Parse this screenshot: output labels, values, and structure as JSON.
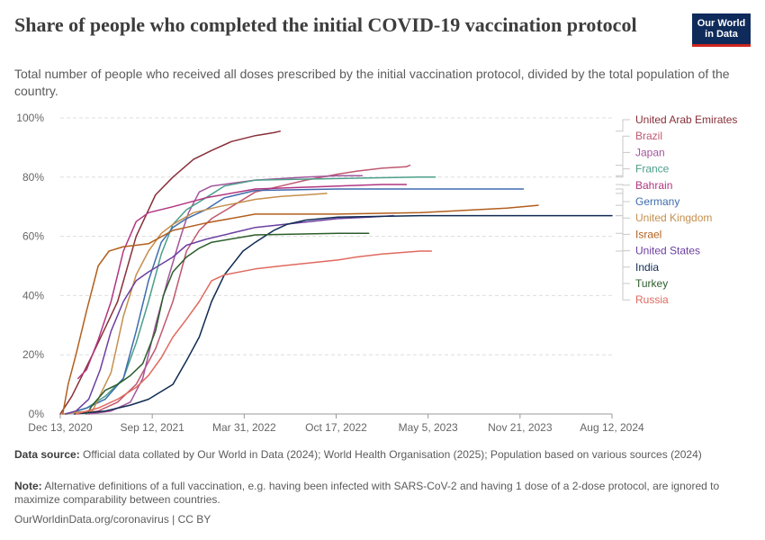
{
  "header": {
    "title": "Share of people who completed the initial COVID-19 vaccination protocol",
    "subtitle": "Total number of people who received all doses prescribed by the initial vaccination protocol, divided by the total population of the country.",
    "logo_line1": "Our World",
    "logo_line2": "in Data"
  },
  "footer": {
    "source_label": "Data source:",
    "source_text": "Official data collated by Our World in Data (2024); World Health Organisation (2025); Population based on various sources (2024)",
    "note_label": "Note:",
    "note_text": "Alternative definitions of a full vaccination, e.g. having been infected with SARS-CoV-2 and having 1 dose of a 2-dose protocol, are ignored to maximize comparability between countries.",
    "url": "OurWorldinData.org/coronavirus | CC BY"
  },
  "chart_data": {
    "type": "line",
    "x_ticks": [
      "Dec 13, 2020",
      "Sep 12, 2021",
      "Mar 31, 2022",
      "Oct 17, 2022",
      "May 5, 2023",
      "Nov 21, 2023",
      "Aug 12, 2024"
    ],
    "y_ticks": [
      "0%",
      "20%",
      "40%",
      "60%",
      "80%",
      "100%"
    ],
    "x_range": [
      "2020-12-13",
      "2024-08-12"
    ],
    "ylim": [
      0,
      100
    ],
    "grid": "horizontal dashed",
    "legend_placement": "right",
    "series": [
      {
        "name": "United Arab Emirates",
        "color": "#883039",
        "points": [
          [
            "2020-12-13",
            0
          ],
          [
            "2021-01-10",
            6
          ],
          [
            "2021-03-01",
            20
          ],
          [
            "2021-05-01",
            38
          ],
          [
            "2021-06-15",
            60
          ],
          [
            "2021-08-01",
            74
          ],
          [
            "2021-09-12",
            80
          ],
          [
            "2021-11-01",
            86
          ],
          [
            "2021-12-15",
            89
          ],
          [
            "2022-02-01",
            92
          ],
          [
            "2022-03-31",
            94
          ],
          [
            "2022-05-15",
            95
          ],
          [
            "2022-05-30",
            95.5
          ]
        ]
      },
      {
        "name": "Brazil",
        "color": "#c05870",
        "points": [
          [
            "2021-01-20",
            0
          ],
          [
            "2021-03-15",
            1
          ],
          [
            "2021-05-01",
            4
          ],
          [
            "2021-06-15",
            10
          ],
          [
            "2021-08-01",
            22
          ],
          [
            "2021-09-12",
            38
          ],
          [
            "2021-10-15",
            55
          ],
          [
            "2021-11-15",
            62
          ],
          [
            "2021-12-15",
            66
          ],
          [
            "2022-02-01",
            70
          ],
          [
            "2022-03-31",
            75
          ],
          [
            "2022-06-01",
            77
          ],
          [
            "2022-08-01",
            79
          ],
          [
            "2022-10-17",
            81
          ],
          [
            "2022-12-01",
            82
          ],
          [
            "2023-02-01",
            83
          ],
          [
            "2023-04-01",
            83.5
          ],
          [
            "2023-04-10",
            84
          ]
        ]
      },
      {
        "name": "Japan",
        "color": "#a2559c",
        "points": [
          [
            "2021-02-20",
            0
          ],
          [
            "2021-04-15",
            1
          ],
          [
            "2021-06-01",
            4
          ],
          [
            "2021-07-01",
            12
          ],
          [
            "2021-08-01",
            30
          ],
          [
            "2021-09-01",
            46
          ],
          [
            "2021-10-01",
            60
          ],
          [
            "2021-10-20",
            68
          ],
          [
            "2021-11-15",
            75
          ],
          [
            "2021-12-15",
            77
          ],
          [
            "2022-03-31",
            79
          ],
          [
            "2022-08-01",
            80
          ],
          [
            "2022-10-17",
            80.5
          ],
          [
            "2022-12-15",
            80.5
          ]
        ]
      },
      {
        "name": "France",
        "color": "#4c9f8a",
        "points": [
          [
            "2020-12-30",
            0
          ],
          [
            "2021-02-15",
            2
          ],
          [
            "2021-04-01",
            6
          ],
          [
            "2021-05-15",
            12
          ],
          [
            "2021-06-15",
            24
          ],
          [
            "2021-07-15",
            38
          ],
          [
            "2021-08-15",
            54
          ],
          [
            "2021-09-12",
            64
          ],
          [
            "2021-10-15",
            69
          ],
          [
            "2021-12-01",
            73
          ],
          [
            "2022-01-15",
            77
          ],
          [
            "2022-03-31",
            79
          ],
          [
            "2022-10-17",
            79.5
          ],
          [
            "2023-05-01",
            80
          ],
          [
            "2023-06-10",
            80
          ]
        ]
      },
      {
        "name": "Bahrain",
        "color": "#b13581",
        "points": [
          [
            "2021-01-25",
            12
          ],
          [
            "2021-02-15",
            15
          ],
          [
            "2021-03-15",
            25
          ],
          [
            "2021-04-15",
            38
          ],
          [
            "2021-05-15",
            55
          ],
          [
            "2021-06-15",
            65
          ],
          [
            "2021-07-15",
            68
          ],
          [
            "2021-09-12",
            70
          ],
          [
            "2021-12-01",
            73
          ],
          [
            "2022-03-31",
            76
          ],
          [
            "2022-10-17",
            77
          ],
          [
            "2023-02-01",
            77.5
          ],
          [
            "2023-04-01",
            77.5
          ]
        ]
      },
      {
        "name": "Germany",
        "color": "#3e6cad",
        "points": [
          [
            "2020-12-27",
            0
          ],
          [
            "2021-02-15",
            2
          ],
          [
            "2021-04-01",
            5
          ],
          [
            "2021-05-15",
            12
          ],
          [
            "2021-06-15",
            28
          ],
          [
            "2021-07-15",
            45
          ],
          [
            "2021-08-15",
            58
          ],
          [
            "2021-09-12",
            63
          ],
          [
            "2021-10-15",
            66
          ],
          [
            "2021-12-01",
            69
          ],
          [
            "2022-01-15",
            73
          ],
          [
            "2022-03-31",
            75.5
          ],
          [
            "2022-10-17",
            76
          ],
          [
            "2023-05-01",
            76
          ],
          [
            "2023-12-01",
            76
          ],
          [
            "2024-01-10",
            76
          ]
        ]
      },
      {
        "name": "United Kingdom",
        "color": "#c48f4d",
        "points": [
          [
            "2020-12-20",
            0
          ],
          [
            "2021-01-15",
            0.5
          ],
          [
            "2021-03-01",
            1
          ],
          [
            "2021-04-15",
            14
          ],
          [
            "2021-05-15",
            33
          ],
          [
            "2021-06-15",
            47
          ],
          [
            "2021-07-15",
            55
          ],
          [
            "2021-08-15",
            61
          ],
          [
            "2021-09-12",
            64
          ],
          [
            "2021-11-01",
            68
          ],
          [
            "2022-01-01",
            70
          ],
          [
            "2022-03-31",
            72.5
          ],
          [
            "2022-06-01",
            73.5
          ],
          [
            "2022-08-01",
            74
          ],
          [
            "2022-09-20",
            74.5
          ]
        ]
      },
      {
        "name": "Israel",
        "color": "#b25f1d",
        "points": [
          [
            "2020-12-19",
            0
          ],
          [
            "2021-01-01",
            10
          ],
          [
            "2021-01-20",
            20
          ],
          [
            "2021-02-15",
            35
          ],
          [
            "2021-03-15",
            50
          ],
          [
            "2021-04-10",
            55
          ],
          [
            "2021-05-15",
            56.5
          ],
          [
            "2021-06-15",
            57
          ],
          [
            "2021-07-15",
            57.5
          ],
          [
            "2021-09-12",
            62
          ],
          [
            "2021-12-01",
            64.5
          ],
          [
            "2022-03-31",
            67.5
          ],
          [
            "2022-10-17",
            67.5
          ],
          [
            "2023-05-05",
            68
          ],
          [
            "2023-12-01",
            69.5
          ],
          [
            "2024-02-15",
            70.5
          ]
        ]
      },
      {
        "name": "United States",
        "color": "#6b3fa0",
        "points": [
          [
            "2020-12-25",
            0
          ],
          [
            "2021-01-20",
            1
          ],
          [
            "2021-02-20",
            5
          ],
          [
            "2021-03-20",
            15
          ],
          [
            "2021-04-15",
            28
          ],
          [
            "2021-05-15",
            38
          ],
          [
            "2021-06-15",
            45
          ],
          [
            "2021-07-15",
            48
          ],
          [
            "2021-09-12",
            53
          ],
          [
            "2021-10-15",
            57
          ],
          [
            "2021-12-01",
            59
          ],
          [
            "2022-03-31",
            63
          ],
          [
            "2022-10-17",
            66
          ],
          [
            "2023-01-01",
            66.5
          ],
          [
            "2023-03-01",
            67
          ]
        ]
      },
      {
        "name": "India",
        "color": "#0f2b52",
        "points": [
          [
            "2021-01-16",
            0
          ],
          [
            "2021-04-01",
            1
          ],
          [
            "2021-06-01",
            3
          ],
          [
            "2021-07-15",
            5
          ],
          [
            "2021-09-12",
            10
          ],
          [
            "2021-10-15",
            18
          ],
          [
            "2021-11-15",
            26
          ],
          [
            "2021-12-15",
            38
          ],
          [
            "2022-01-15",
            47
          ],
          [
            "2022-03-01",
            55
          ],
          [
            "2022-03-31",
            58
          ],
          [
            "2022-05-15",
            62
          ],
          [
            "2022-06-15",
            64
          ],
          [
            "2022-08-01",
            65.5
          ],
          [
            "2022-10-17",
            66.5
          ],
          [
            "2023-05-05",
            67
          ],
          [
            "2023-12-01",
            67
          ],
          [
            "2024-08-12",
            67
          ]
        ]
      },
      {
        "name": "Turkey",
        "color": "#2c5e2c",
        "points": [
          [
            "2021-02-15",
            0
          ],
          [
            "2021-03-01",
            3
          ],
          [
            "2021-04-01",
            8
          ],
          [
            "2021-05-01",
            10
          ],
          [
            "2021-06-01",
            13
          ],
          [
            "2021-07-01",
            17
          ],
          [
            "2021-08-01",
            28
          ],
          [
            "2021-08-20",
            40
          ],
          [
            "2021-09-12",
            48
          ],
          [
            "2021-10-15",
            53
          ],
          [
            "2021-11-15",
            56
          ],
          [
            "2021-12-15",
            58
          ],
          [
            "2022-03-31",
            60.5
          ],
          [
            "2022-10-17",
            61
          ],
          [
            "2022-12-31",
            61
          ]
        ]
      },
      {
        "name": "Russia",
        "color": "#e06a5e",
        "points": [
          [
            "2021-01-20",
            0
          ],
          [
            "2021-03-15",
            2
          ],
          [
            "2021-05-01",
            5
          ],
          [
            "2021-06-15",
            9
          ],
          [
            "2021-07-15",
            13
          ],
          [
            "2021-08-15",
            19
          ],
          [
            "2021-09-12",
            26
          ],
          [
            "2021-10-15",
            32
          ],
          [
            "2021-11-15",
            38
          ],
          [
            "2021-12-15",
            45
          ],
          [
            "2022-01-15",
            47
          ],
          [
            "2022-03-31",
            49
          ],
          [
            "2022-06-01",
            50
          ],
          [
            "2022-10-17",
            52
          ],
          [
            "2022-12-01",
            53
          ],
          [
            "2023-02-01",
            54
          ],
          [
            "2023-05-05",
            55
          ],
          [
            "2023-06-01",
            55
          ]
        ]
      }
    ]
  }
}
